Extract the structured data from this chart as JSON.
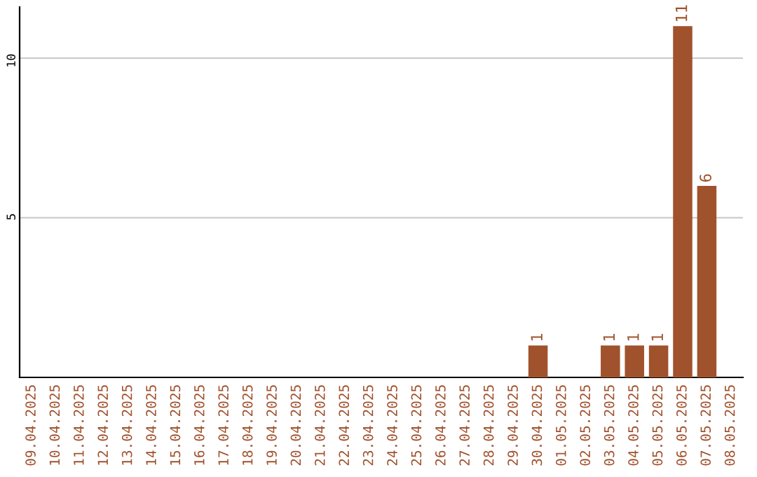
{
  "chart_data": {
    "type": "bar",
    "categories": [
      "09.04.2025",
      "10.04.2025",
      "11.04.2025",
      "12.04.2025",
      "13.04.2025",
      "14.04.2025",
      "15.04.2025",
      "16.04.2025",
      "17.04.2025",
      "18.04.2025",
      "19.04.2025",
      "20.04.2025",
      "21.04.2025",
      "22.04.2025",
      "23.04.2025",
      "24.04.2025",
      "25.04.2025",
      "26.04.2025",
      "27.04.2025",
      "28.04.2025",
      "29.04.2025",
      "30.04.2025",
      "01.05.2025",
      "02.05.2025",
      "03.05.2025",
      "04.05.2025",
      "05.05.2025",
      "06.05.2025",
      "07.05.2025",
      "08.05.2025"
    ],
    "values": [
      0,
      0,
      0,
      0,
      0,
      0,
      0,
      0,
      0,
      0,
      0,
      0,
      0,
      0,
      0,
      0,
      0,
      0,
      0,
      0,
      0,
      1,
      0,
      0,
      1,
      1,
      1,
      11,
      6,
      0
    ],
    "value_labels": [
      null,
      null,
      null,
      null,
      null,
      null,
      null,
      null,
      null,
      null,
      null,
      null,
      null,
      null,
      null,
      null,
      null,
      null,
      null,
      null,
      null,
      "1",
      null,
      null,
      "1",
      "1",
      "1",
      "11",
      "6",
      null
    ],
    "color": "#a0522d",
    "ylim": [
      0,
      11.6
    ],
    "yticks": [
      5,
      10
    ],
    "grid": "y"
  }
}
